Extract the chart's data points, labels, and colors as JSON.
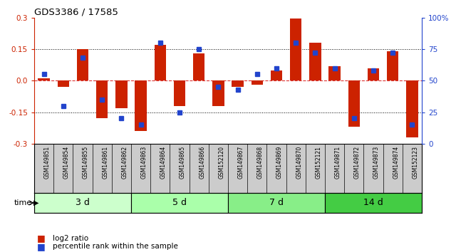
{
  "title": "GDS3386 / 17585",
  "samples": [
    "GSM149851",
    "GSM149854",
    "GSM149855",
    "GSM149861",
    "GSM149862",
    "GSM149863",
    "GSM149864",
    "GSM149865",
    "GSM149866",
    "GSM152120",
    "GSM149867",
    "GSM149868",
    "GSM149869",
    "GSM149870",
    "GSM152121",
    "GSM149871",
    "GSM149872",
    "GSM149873",
    "GSM149874",
    "GSM152123"
  ],
  "log2_ratio": [
    0.01,
    -0.03,
    0.15,
    -0.18,
    -0.13,
    -0.24,
    0.17,
    -0.12,
    0.13,
    -0.12,
    -0.03,
    -0.02,
    0.05,
    0.295,
    0.18,
    0.07,
    -0.22,
    0.06,
    0.14,
    -0.27
  ],
  "percentile": [
    55,
    30,
    68,
    35,
    20,
    15,
    80,
    25,
    75,
    45,
    43,
    55,
    60,
    80,
    72,
    60,
    20,
    58,
    72,
    15
  ],
  "groups": [
    {
      "label": "3 d",
      "start": 0,
      "end": 5,
      "color": "#ccffcc"
    },
    {
      "label": "5 d",
      "start": 5,
      "end": 10,
      "color": "#aaffaa"
    },
    {
      "label": "7 d",
      "start": 10,
      "end": 15,
      "color": "#88ee88"
    },
    {
      "label": "14 d",
      "start": 15,
      "end": 20,
      "color": "#44cc44"
    }
  ],
  "bar_color": "#cc2200",
  "dot_color": "#2244cc",
  "ylim": [
    -0.3,
    0.3
  ],
  "y2lim": [
    0,
    100
  ],
  "yticks_left": [
    -0.3,
    -0.15,
    0.0,
    0.15,
    0.3
  ],
  "yticks_right": [
    0,
    25,
    50,
    75,
    100
  ],
  "hlines_dotted": [
    -0.15,
    0.15
  ],
  "hline_dashed": 0.0,
  "bg_color": "#ffffff",
  "label_bg": "#cccccc",
  "bar_width": 0.6
}
